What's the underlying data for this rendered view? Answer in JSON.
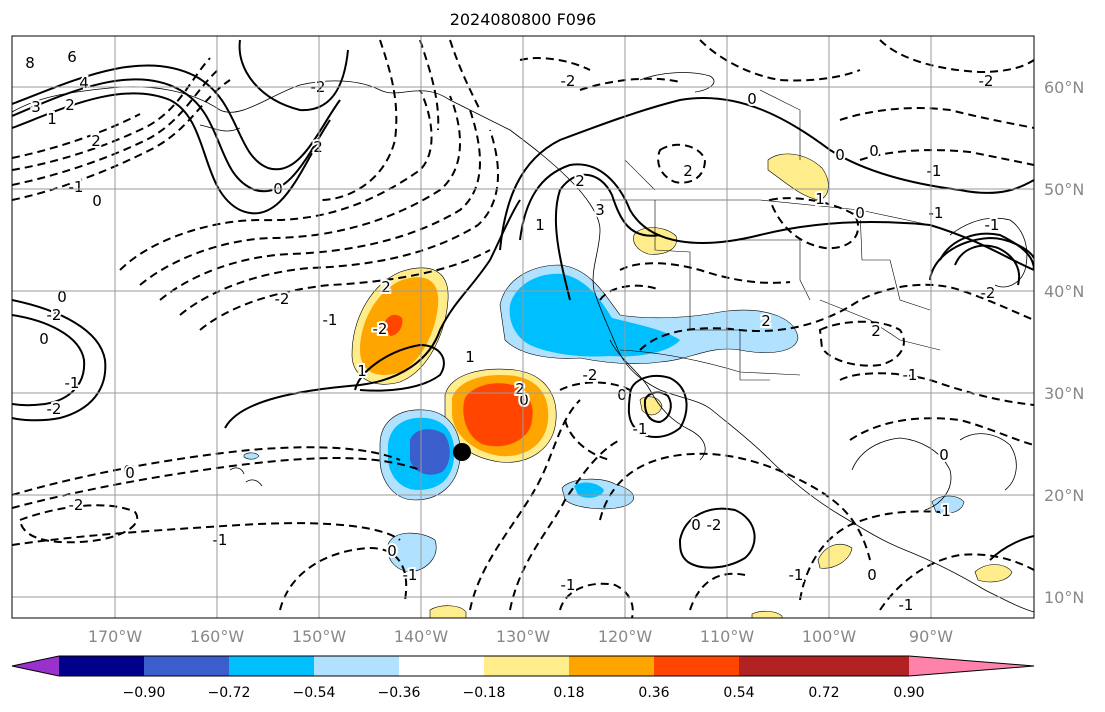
{
  "title": "2024080800 F096",
  "lat_labels": [
    "60°N",
    "50°N",
    "40°N",
    "30°N",
    "20°N",
    "10°N"
  ],
  "lon_labels": [
    "170°W",
    "160°W",
    "150°W",
    "140°W",
    "130°W",
    "120°W",
    "110°W",
    "100°W",
    "90°W"
  ],
  "colorbar": {
    "colors": [
      "#9932CC",
      "#00008B",
      "#3A5FCD",
      "#00BFFF",
      "#B0E2FF",
      "#FFFFFF",
      "#FFEC8B",
      "#FFA500",
      "#FF4500",
      "#B22222",
      "#FF82AB"
    ],
    "ticks": [
      "−0.90",
      "−0.72",
      "−0.54",
      "−0.36",
      "−0.18",
      "0.18",
      "0.36",
      "0.54",
      "0.72",
      "0.90"
    ]
  },
  "contour_labels": [
    "8",
    "6",
    "4",
    "3",
    "2",
    "1",
    "2",
    "0",
    "-1",
    "-2",
    "2",
    "0",
    "0",
    "-2",
    "0",
    "-1",
    "-2",
    "-2",
    "2",
    "-2",
    "1",
    "-1",
    "0",
    "-2",
    "-1",
    "1",
    "0",
    "2",
    "3",
    "2",
    "1",
    "0",
    "-2",
    "-1",
    "0",
    "-1",
    "-1",
    "0",
    "-2",
    "2",
    "0",
    "1",
    "-1",
    "0",
    "0",
    "-2",
    "-2",
    "2",
    "2",
    "-1",
    "0",
    "1",
    "-1",
    "0",
    "-1",
    "-1",
    "-1",
    "0",
    "-2",
    "0"
  ],
  "storm_marker": "black dot"
}
